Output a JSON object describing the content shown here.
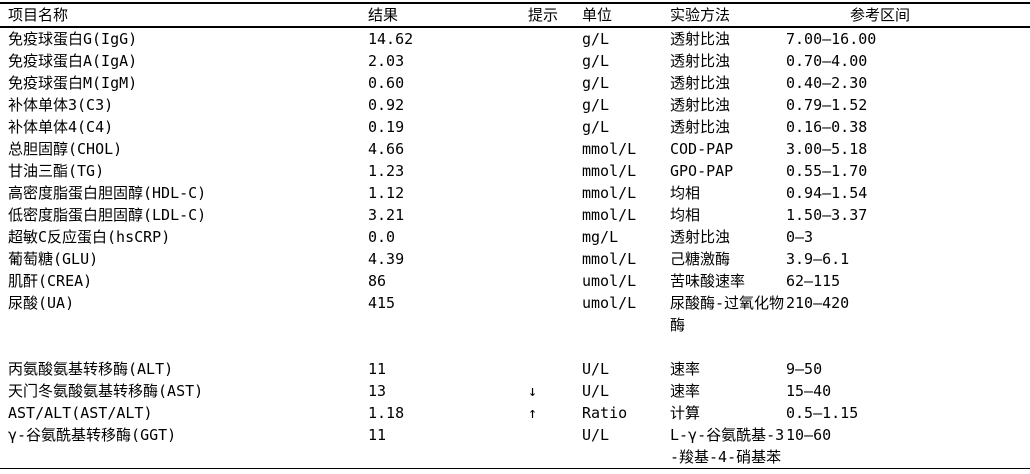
{
  "colors": {
    "background": "#ffffff",
    "text": "#000000",
    "border": "#000000"
  },
  "report_table": {
    "columns": [
      {
        "id": "name",
        "label": "项目名称"
      },
      {
        "id": "result",
        "label": "结果"
      },
      {
        "id": "flag",
        "label": "提示"
      },
      {
        "id": "unit",
        "label": "单位"
      },
      {
        "id": "method",
        "label": "实验方法"
      },
      {
        "id": "range",
        "label": "参考区间"
      }
    ],
    "rows": [
      {
        "name": "免疫球蛋白G(IgG)",
        "result": "14.62",
        "flag": "",
        "unit": "g/L",
        "method": "透射比浊",
        "range": "7.00—16.00"
      },
      {
        "name": "免疫球蛋白A(IgA)",
        "result": "2.03",
        "flag": "",
        "unit": "g/L",
        "method": "透射比浊",
        "range": "0.70—4.00"
      },
      {
        "name": "免疫球蛋白M(IgM)",
        "result": "0.60",
        "flag": "",
        "unit": "g/L",
        "method": "透射比浊",
        "range": "0.40—2.30"
      },
      {
        "name": "补体单体3(C3)",
        "result": "0.92",
        "flag": "",
        "unit": "g/L",
        "method": "透射比浊",
        "range": "0.79—1.52"
      },
      {
        "name": "补体单体4(C4)",
        "result": "0.19",
        "flag": "",
        "unit": "g/L",
        "method": "透射比浊",
        "range": "0.16—0.38"
      },
      {
        "name": "总胆固醇(CHOL)",
        "result": "4.66",
        "flag": "",
        "unit": "mmol/L",
        "method": "COD-PAP",
        "range": "3.00—5.18"
      },
      {
        "name": "甘油三酯(TG)",
        "result": "1.23",
        "flag": "",
        "unit": "mmol/L",
        "method": "GPO-PAP",
        "range": "0.55—1.70"
      },
      {
        "name": "高密度脂蛋白胆固醇(HDL-C)",
        "result": "1.12",
        "flag": "",
        "unit": "mmol/L",
        "method": "均相",
        "range": "0.94—1.54"
      },
      {
        "name": "低密度脂蛋白胆固醇(LDL-C)",
        "result": "3.21",
        "flag": "",
        "unit": "mmol/L",
        "method": "均相",
        "range": "1.50—3.37"
      },
      {
        "name": "超敏C反应蛋白(hsCRP)",
        "result": "0.0",
        "flag": "",
        "unit": "mg/L",
        "method": "透射比浊",
        "range": "0—3"
      },
      {
        "name": "葡萄糖(GLU)",
        "result": "4.39",
        "flag": "",
        "unit": "mmol/L",
        "method": "己糖激酶",
        "range": "3.9—6.1"
      },
      {
        "name": "肌酐(CREA)",
        "result": "86",
        "flag": "",
        "unit": "umol/L",
        "method": "苦味酸速率",
        "range": "62—115"
      },
      {
        "name": "尿酸(UA)",
        "result": "415",
        "flag": "",
        "unit": "umol/L",
        "method": "尿酸酶-过氧化物\n酶",
        "range": "210—420"
      },
      {
        "spacer": true
      },
      {
        "name": "丙氨酸氨基转移酶(ALT)",
        "result": "11",
        "flag": "",
        "unit": "U/L",
        "method": "速率",
        "range": "9—50"
      },
      {
        "name": "天门冬氨酸氨基转移酶(AST)",
        "result": "13",
        "flag": "↓",
        "unit": "U/L",
        "method": "速率",
        "range": "15—40"
      },
      {
        "name": "AST/ALT(AST/ALT)",
        "result": "1.18",
        "flag": "↑",
        "unit": "Ratio",
        "method": "计算",
        "range": "0.5—1.15"
      },
      {
        "name": "γ-谷氨酰基转移酶(GGT)",
        "result": "11",
        "flag": "",
        "unit": "U/L",
        "method": "L-γ-谷氨酰基-3\n-羧基-4-硝基苯",
        "range": "10—60"
      }
    ]
  }
}
